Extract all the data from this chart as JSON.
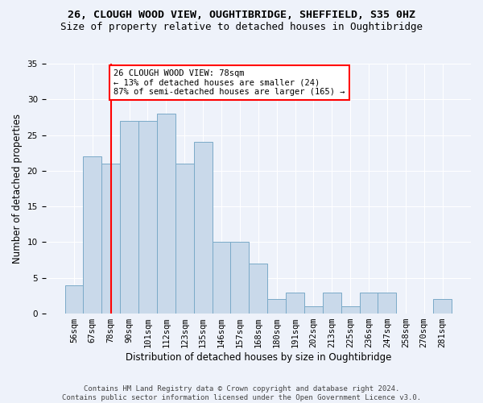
{
  "title_line1": "26, CLOUGH WOOD VIEW, OUGHTIBRIDGE, SHEFFIELD, S35 0HZ",
  "title_line2": "Size of property relative to detached houses in Oughtibridge",
  "xlabel": "Distribution of detached houses by size in Oughtibridge",
  "ylabel": "Number of detached properties",
  "categories": [
    "56sqm",
    "67sqm",
    "78sqm",
    "90sqm",
    "101sqm",
    "112sqm",
    "123sqm",
    "135sqm",
    "146sqm",
    "157sqm",
    "168sqm",
    "180sqm",
    "191sqm",
    "202sqm",
    "213sqm",
    "225sqm",
    "236sqm",
    "247sqm",
    "258sqm",
    "270sqm",
    "281sqm"
  ],
  "values": [
    4,
    22,
    21,
    27,
    27,
    28,
    21,
    24,
    10,
    10,
    7,
    2,
    3,
    1,
    3,
    1,
    3,
    3,
    0,
    0,
    2
  ],
  "bar_color": "#c9d9ea",
  "bar_edge_color": "#7aaac8",
  "annotation_label": "26 CLOUGH WOOD VIEW: 78sqm",
  "annotation_line2": "← 13% of detached houses are smaller (24)",
  "annotation_line3": "87% of semi-detached houses are larger (165) →",
  "annotation_box_color": "white",
  "annotation_box_edge_color": "red",
  "line_color": "red",
  "ylim": [
    0,
    35
  ],
  "yticks": [
    0,
    5,
    10,
    15,
    20,
    25,
    30,
    35
  ],
  "footer_line1": "Contains HM Land Registry data © Crown copyright and database right 2024.",
  "footer_line2": "Contains public sector information licensed under the Open Government Licence v3.0.",
  "bg_color": "#eef2fa",
  "grid_color": "#ffffff",
  "title_fontsize": 9.5,
  "subtitle_fontsize": 9,
  "ylabel_fontsize": 8.5,
  "xlabel_fontsize": 8.5,
  "tick_fontsize": 7.5,
  "annot_fontsize": 7.5,
  "footer_fontsize": 6.5
}
